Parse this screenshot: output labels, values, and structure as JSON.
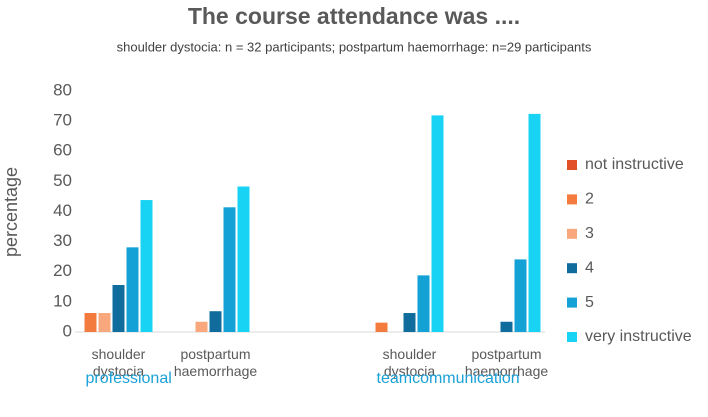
{
  "chart_data": {
    "type": "bar",
    "title": "The course attendance was ....",
    "subtitle": "shoulder dystocia: n = 32 participants; postpartum haemorrhage: n=29 participants",
    "y_label": "percentage",
    "categories": [
      "shoulder dystocia",
      "postpartum haemorrhage",
      null,
      "shoulder dystocia",
      "postpartum haemorrhage"
    ],
    "group_labels": [
      "professional",
      "teamcommunication"
    ],
    "series": [
      {
        "name": "not instructive",
        "color": "#e2502a",
        "values": [
          0,
          0,
          null,
          0,
          0
        ]
      },
      {
        "name": "2",
        "color": "#f47b3e",
        "values": [
          6.3,
          0,
          null,
          3.1,
          0
        ]
      },
      {
        "name": "3",
        "color": "#f8a87c",
        "values": [
          6.3,
          3.4,
          null,
          0,
          0
        ]
      },
      {
        "name": "4",
        "color": "#0f6c9c",
        "values": [
          15.6,
          6.9,
          null,
          6.3,
          3.4
        ]
      },
      {
        "name": "5",
        "color": "#14a1d6",
        "values": [
          28.1,
          41.4,
          null,
          18.8,
          24.1
        ]
      },
      {
        "name": "very instructive",
        "color": "#18d3f4",
        "values": [
          43.8,
          48.3,
          null,
          71.9,
          72.4
        ]
      }
    ],
    "ylim": [
      0,
      80
    ],
    "yticks": [
      0,
      10,
      20,
      30,
      40,
      50,
      60,
      70,
      80
    ],
    "grid": false,
    "legend": "right"
  }
}
